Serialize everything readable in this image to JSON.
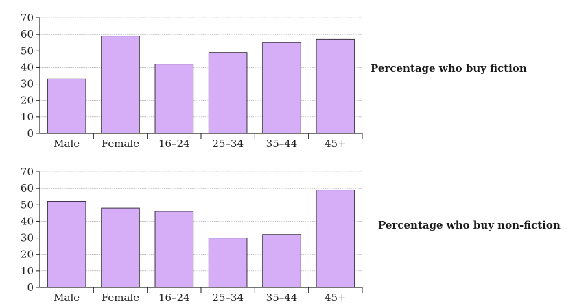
{
  "chart_data": [
    {
      "type": "bar",
      "title": "Percentage who buy fiction",
      "categories": [
        "Male",
        "Female",
        "16–24",
        "25–34",
        "35–44",
        "45+"
      ],
      "values": [
        33,
        59,
        42,
        49,
        55,
        57
      ],
      "ylim": [
        0,
        70
      ],
      "yticks": [
        0,
        10,
        20,
        30,
        40,
        50,
        60,
        70
      ],
      "grid": true,
      "bar_color": "#d5aef7"
    },
    {
      "type": "bar",
      "title": "Percentage who buy non-fiction",
      "categories": [
        "Male",
        "Female",
        "16–24",
        "25–34",
        "35–44",
        "45+"
      ],
      "values": [
        52,
        48,
        46,
        30,
        32,
        59
      ],
      "ylim": [
        0,
        70
      ],
      "yticks": [
        0,
        10,
        20,
        30,
        40,
        50,
        60,
        70
      ],
      "grid": true,
      "bar_color": "#d5aef7"
    }
  ]
}
